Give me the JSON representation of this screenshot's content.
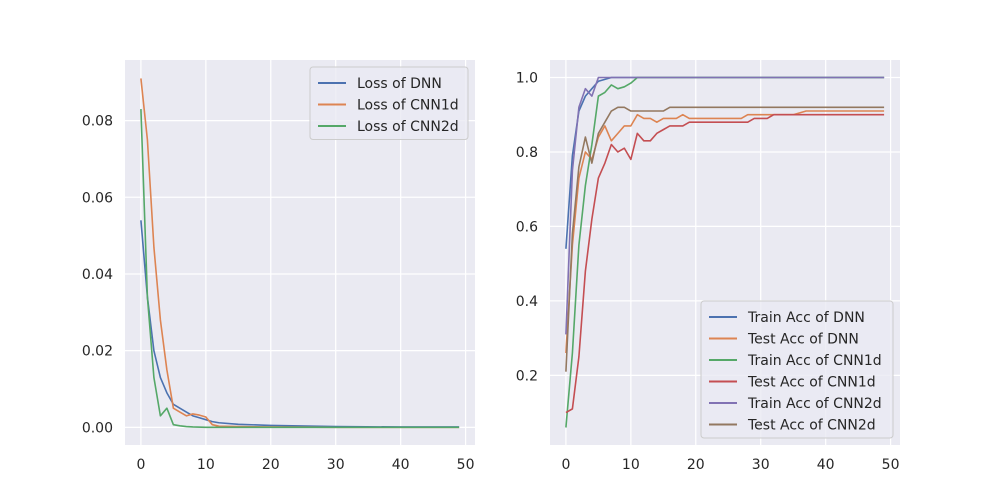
{
  "chart_data": [
    {
      "type": "line",
      "title": "",
      "xlabel": "",
      "ylabel": "",
      "xlim": [
        -2.45,
        51.45
      ],
      "ylim": [
        -0.0046,
        0.0958
      ],
      "xticks": [
        0,
        10,
        20,
        30,
        40,
        50
      ],
      "yticks": [
        0.0,
        0.02,
        0.04,
        0.06,
        0.08
      ],
      "ytick_decimals": 2,
      "grid": true,
      "legend_position": "top-right",
      "series": [
        {
          "name": "Loss of DNN",
          "color": "#4c72b0",
          "x": [
            0,
            1,
            2,
            3,
            4,
            5,
            6,
            7,
            8,
            9,
            10,
            11,
            12,
            15,
            20,
            30,
            40,
            49
          ],
          "y": [
            0.054,
            0.034,
            0.02,
            0.013,
            0.009,
            0.006,
            0.005,
            0.004,
            0.003,
            0.0025,
            0.002,
            0.0015,
            0.0012,
            0.0008,
            0.0005,
            0.0002,
            0.0001,
            0.0001
          ]
        },
        {
          "name": "Loss of CNN1d",
          "color": "#dd8452",
          "x": [
            0,
            1,
            2,
            3,
            4,
            5,
            6,
            7,
            8,
            9,
            10,
            11,
            12,
            15,
            20,
            30,
            40,
            49
          ],
          "y": [
            0.091,
            0.075,
            0.047,
            0.028,
            0.015,
            0.005,
            0.004,
            0.003,
            0.0035,
            0.0032,
            0.0027,
            0.0007,
            0.0003,
            0.0002,
            0.0001,
            0.0,
            0.0,
            0.0
          ]
        },
        {
          "name": "Loss of CNN2d",
          "color": "#55a868",
          "x": [
            0,
            1,
            2,
            3,
            4,
            5,
            6,
            7,
            8,
            10,
            15,
            20,
            30,
            40,
            49
          ],
          "y": [
            0.083,
            0.034,
            0.013,
            0.003,
            0.005,
            0.0007,
            0.0004,
            0.0002,
            0.0001,
            0.0,
            0.0,
            0.0,
            0.0,
            0.0,
            0.0
          ]
        }
      ]
    },
    {
      "type": "line",
      "title": "",
      "xlabel": "",
      "ylabel": "",
      "xlim": [
        -2.45,
        51.45
      ],
      "ylim": [
        0.013,
        1.047
      ],
      "xticks": [
        0,
        10,
        20,
        30,
        40,
        50
      ],
      "yticks": [
        0.2,
        0.4,
        0.6,
        0.8,
        1.0
      ],
      "ytick_decimals": 1,
      "grid": true,
      "legend_position": "lower-right",
      "series": [
        {
          "name": "Train Acc of DNN",
          "color": "#4c72b0",
          "x": [
            0,
            1,
            2,
            3,
            4,
            5,
            6,
            7,
            8,
            10,
            15,
            20,
            30,
            40,
            49
          ],
          "y": [
            0.54,
            0.79,
            0.91,
            0.95,
            0.97,
            0.99,
            0.995,
            1.0,
            1.0,
            1.0,
            1.0,
            1.0,
            1.0,
            1.0,
            1.0
          ]
        },
        {
          "name": "Test Acc of DNN",
          "color": "#dd8452",
          "x": [
            0,
            1,
            2,
            3,
            4,
            5,
            6,
            7,
            8,
            9,
            10,
            11,
            12,
            13,
            14,
            15,
            16,
            17,
            18,
            19,
            20,
            22,
            25,
            27,
            28,
            30,
            32,
            35,
            37,
            38,
            40,
            45,
            49
          ],
          "y": [
            0.26,
            0.55,
            0.73,
            0.8,
            0.78,
            0.84,
            0.87,
            0.83,
            0.85,
            0.87,
            0.87,
            0.9,
            0.89,
            0.89,
            0.88,
            0.89,
            0.89,
            0.89,
            0.9,
            0.89,
            0.89,
            0.89,
            0.89,
            0.89,
            0.9,
            0.9,
            0.9,
            0.9,
            0.91,
            0.91,
            0.91,
            0.91,
            0.91
          ]
        },
        {
          "name": "Train Acc of CNN1d",
          "color": "#55a868",
          "x": [
            0,
            1,
            2,
            3,
            4,
            5,
            6,
            7,
            8,
            9,
            10,
            11,
            12,
            13,
            15,
            20,
            30,
            40,
            49
          ],
          "y": [
            0.06,
            0.26,
            0.55,
            0.71,
            0.82,
            0.95,
            0.96,
            0.98,
            0.97,
            0.975,
            0.985,
            1.0,
            1.0,
            1.0,
            1.0,
            1.0,
            1.0,
            1.0,
            1.0
          ]
        },
        {
          "name": "Test Acc of CNN1d",
          "color": "#c44e52",
          "x": [
            0,
            1,
            2,
            3,
            4,
            5,
            6,
            7,
            8,
            9,
            10,
            11,
            12,
            13,
            14,
            15,
            16,
            18,
            19,
            20,
            25,
            28,
            29,
            30,
            31,
            32,
            35,
            40,
            49
          ],
          "y": [
            0.1,
            0.11,
            0.25,
            0.48,
            0.62,
            0.73,
            0.77,
            0.82,
            0.8,
            0.81,
            0.78,
            0.85,
            0.83,
            0.83,
            0.85,
            0.86,
            0.87,
            0.87,
            0.88,
            0.88,
            0.88,
            0.88,
            0.89,
            0.89,
            0.89,
            0.9,
            0.9,
            0.9,
            0.9
          ]
        },
        {
          "name": "Train Acc of CNN2d",
          "color": "#8172b3",
          "x": [
            0,
            1,
            2,
            3,
            4,
            5,
            6,
            7,
            8,
            10,
            15,
            20,
            30,
            40,
            49
          ],
          "y": [
            0.31,
            0.75,
            0.92,
            0.97,
            0.95,
            1.0,
            1.0,
            1.0,
            1.0,
            1.0,
            1.0,
            1.0,
            1.0,
            1.0,
            1.0
          ]
        },
        {
          "name": "Test Acc of CNN2d",
          "color": "#937860",
          "x": [
            0,
            1,
            2,
            3,
            4,
            5,
            6,
            7,
            8,
            9,
            10,
            11,
            12,
            13,
            14,
            15,
            16,
            18,
            20,
            25,
            30,
            40,
            49
          ],
          "y": [
            0.21,
            0.58,
            0.76,
            0.84,
            0.77,
            0.85,
            0.88,
            0.91,
            0.92,
            0.92,
            0.91,
            0.91,
            0.91,
            0.91,
            0.91,
            0.91,
            0.92,
            0.92,
            0.92,
            0.92,
            0.92,
            0.92,
            0.92
          ]
        }
      ]
    }
  ],
  "style": {
    "axes_background": "#eaeaf2",
    "grid_color": "#ffffff",
    "text_color": "#262626",
    "legend_border": "#cccccc",
    "legend_background": "#eaeaf2"
  }
}
